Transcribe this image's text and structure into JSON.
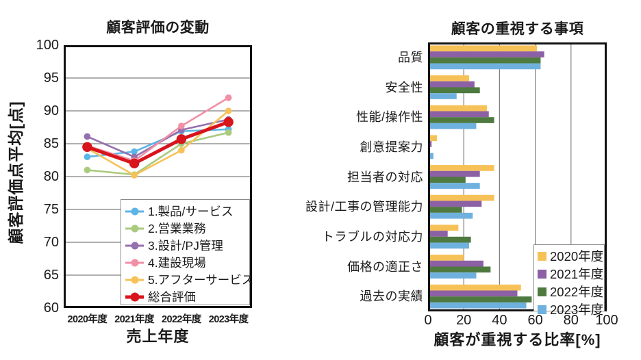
{
  "chart_data": [
    {
      "type": "line",
      "title": "顧客評価の変動",
      "ylabel": "顧客評価点平均[点]",
      "xlabel": "売上年度",
      "categories": [
        "2020年度",
        "2021年度",
        "2022年度",
        "2023年度"
      ],
      "ylim": [
        60,
        100
      ],
      "yticks": [
        100,
        95,
        90,
        85,
        80,
        75,
        70,
        65,
        60
      ],
      "grid": "horizontal",
      "legend_position": "inside-bottom-right",
      "series": [
        {
          "name": "1.製品/サービス",
          "color": "#5CB5E7",
          "values": [
            83,
            83.8,
            86.9,
            87.2
          ],
          "emphasis": false
        },
        {
          "name": "2.営業業務",
          "color": "#AACB7E",
          "values": [
            81,
            80.3,
            85,
            86.7
          ],
          "emphasis": false
        },
        {
          "name": "3.設計/PJ管理",
          "color": "#9570AE",
          "values": [
            86.1,
            83,
            87.1,
            88.7
          ],
          "emphasis": false
        },
        {
          "name": "4.建設現場",
          "color": "#F18FA5",
          "values": [
            84.7,
            82.4,
            87.7,
            92
          ],
          "emphasis": false
        },
        {
          "name": "5.アフターサービス",
          "color": "#F6C258",
          "values": [
            84.3,
            80.2,
            84,
            90
          ],
          "emphasis": false
        },
        {
          "name": "総合評価",
          "color": "#D8141C",
          "values": [
            84.5,
            82,
            85.7,
            88.3
          ],
          "emphasis": true
        }
      ]
    },
    {
      "type": "bar",
      "orientation": "horizontal",
      "title": "顧客の重視する事項",
      "xlabel": "顧客が重視する比率[%]",
      "xlim": [
        0,
        100
      ],
      "xticks": [
        0,
        20,
        40,
        60,
        80,
        100
      ],
      "grid": "vertical",
      "legend_position": "inside-bottom-right",
      "categories": [
        "品質",
        "安全性",
        "性能/操作性",
        "創意提案力",
        "担当者の対応",
        "設計/工事の管理能力",
        "トラブルの対応力",
        "価格の適正さ",
        "過去の実績"
      ],
      "series": [
        {
          "name": "2020年度",
          "color": "#F6C258",
          "values": [
            61,
            23,
            33,
            5,
            37,
            37,
            17,
            20,
            52
          ]
        },
        {
          "name": "2021年度",
          "color": "#8C60A4",
          "values": [
            65,
            26,
            34,
            2,
            29,
            30,
            11,
            31,
            50
          ]
        },
        {
          "name": "2022年度",
          "color": "#4E7A40",
          "values": [
            63,
            29,
            37,
            1,
            21,
            19,
            24,
            35,
            58
          ]
        },
        {
          "name": "2023年度",
          "color": "#6FB1DE",
          "values": [
            63,
            16,
            27,
            3,
            29,
            25,
            23,
            27,
            55
          ]
        }
      ]
    }
  ],
  "style": {
    "gridline_color": "#7f7f7f",
    "frame_color": "#111111",
    "text_color": "#1a1a1a"
  }
}
